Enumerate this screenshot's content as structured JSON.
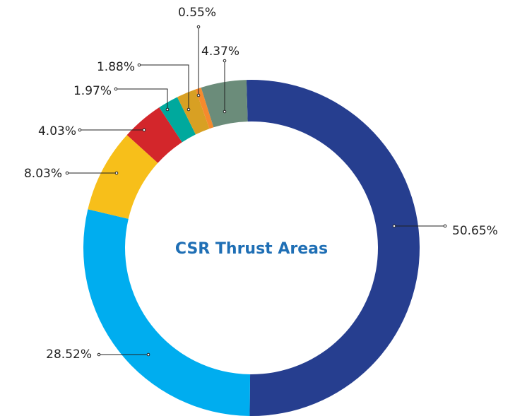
{
  "chart_data": {
    "type": "donut",
    "title": "CSR Thrust Areas",
    "values": [
      50.65,
      28.52,
      8.03,
      4.03,
      1.97,
      1.88,
      0.55,
      4.37
    ],
    "value_labels": [
      "50.65%",
      "28.52%",
      "8.03%",
      "4.03%",
      "1.97%",
      "1.88%",
      "0.55%",
      "4.37%"
    ],
    "colors": [
      "#263e8f",
      "#00adef",
      "#f7bf1a",
      "#d3262b",
      "#00a99d",
      "#d8a023",
      "#f58a2d",
      "#6b8c7a"
    ]
  }
}
